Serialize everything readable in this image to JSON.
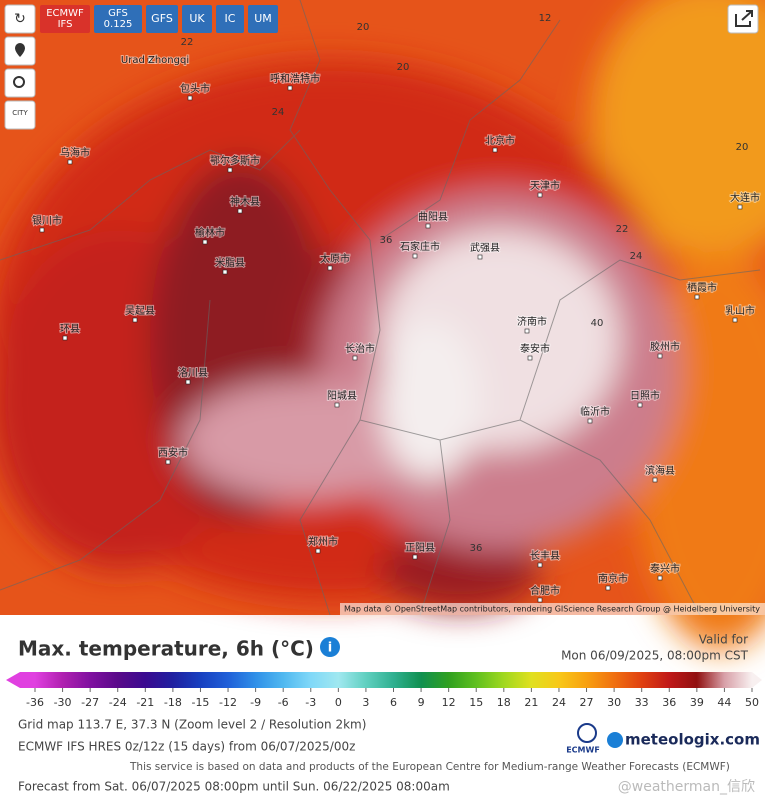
{
  "toolbar": {
    "models": [
      [
        "ECMWF",
        "IFS"
      ],
      [
        "GFS",
        "0.125"
      ],
      [
        "GFS"
      ],
      [
        "UK"
      ],
      [
        "IC"
      ],
      [
        "UM"
      ]
    ],
    "city": "CITY"
  },
  "map": {
    "labels": [
      "乌海市",
      "鄂尔多斯市",
      "包头市",
      "呼和浩特市",
      "银川市",
      "榆林市",
      "神木县",
      "吴起县",
      "环县",
      "西安市",
      "洛川县",
      "米脂县",
      "太原市",
      "石家庄市",
      "北京市",
      "天津市",
      "曲阳县",
      "武强县",
      "济南市",
      "泰安市",
      "临沂市",
      "日照市",
      "胶州市",
      "栖霞市",
      "乳山市",
      "大连市",
      "长治市",
      "阳城县",
      "郑州市",
      "合肥市",
      "南京市",
      "泰兴市",
      "滨海县",
      "长丰县",
      "正阳县",
      "Urad Zhongqi"
    ],
    "contours": [
      20,
      22,
      20,
      24,
      36,
      40,
      36,
      22,
      24,
      20,
      12
    ],
    "attribution": "Map data © OpenStreetMap contributors, rendering GIScience Research Group @ Heidelberg University"
  },
  "legend": {
    "title": "Max. temperature, 6h (°C)",
    "ticks": [
      -36,
      -30,
      -27,
      -24,
      -21,
      -18,
      -15,
      -12,
      -9,
      -6,
      -3,
      0,
      3,
      6,
      9,
      12,
      15,
      18,
      21,
      24,
      27,
      30,
      33,
      36,
      39,
      44,
      50
    ],
    "colors": [
      "#e040e0",
      "#b020b0",
      "#8010a0",
      "#5a0a8a",
      "#3a0a90",
      "#2020a0",
      "#1840c0",
      "#2060d8",
      "#3090e8",
      "#50b8f0",
      "#80d8f8",
      "#a0e8f0",
      "#60d0c0",
      "#30b090",
      "#109050",
      "#30a020",
      "#60c020",
      "#a0d820",
      "#e0e020",
      "#f8c818",
      "#f8a010",
      "#f07010",
      "#e04010",
      "#c01818",
      "#901010",
      "#d8a0a8",
      "#f8f0f0"
    ]
  },
  "valid": {
    "label": "Valid for",
    "time": "Mon 06/09/2025, 08:00pm CST"
  },
  "info": {
    "grid": "Grid map 113.7 E, 37.3 N (Zoom level 2 / Resolution 2km)",
    "model": "ECMWF IFS HRES 0z/12z (15 days) from 06/07/2025/00z",
    "service": "This service is based on data and products of the European Centre for Medium-range Weather Forecasts (ECMWF)",
    "forecast": "Forecast from Sat. 06/07/2025 08:00pm until Sun. 06/22/2025 08:00am"
  },
  "logos": {
    "ecmwf": "ECMWF",
    "meteologix": "meteologix.com"
  },
  "watermark": "@weatherman_信欣"
}
